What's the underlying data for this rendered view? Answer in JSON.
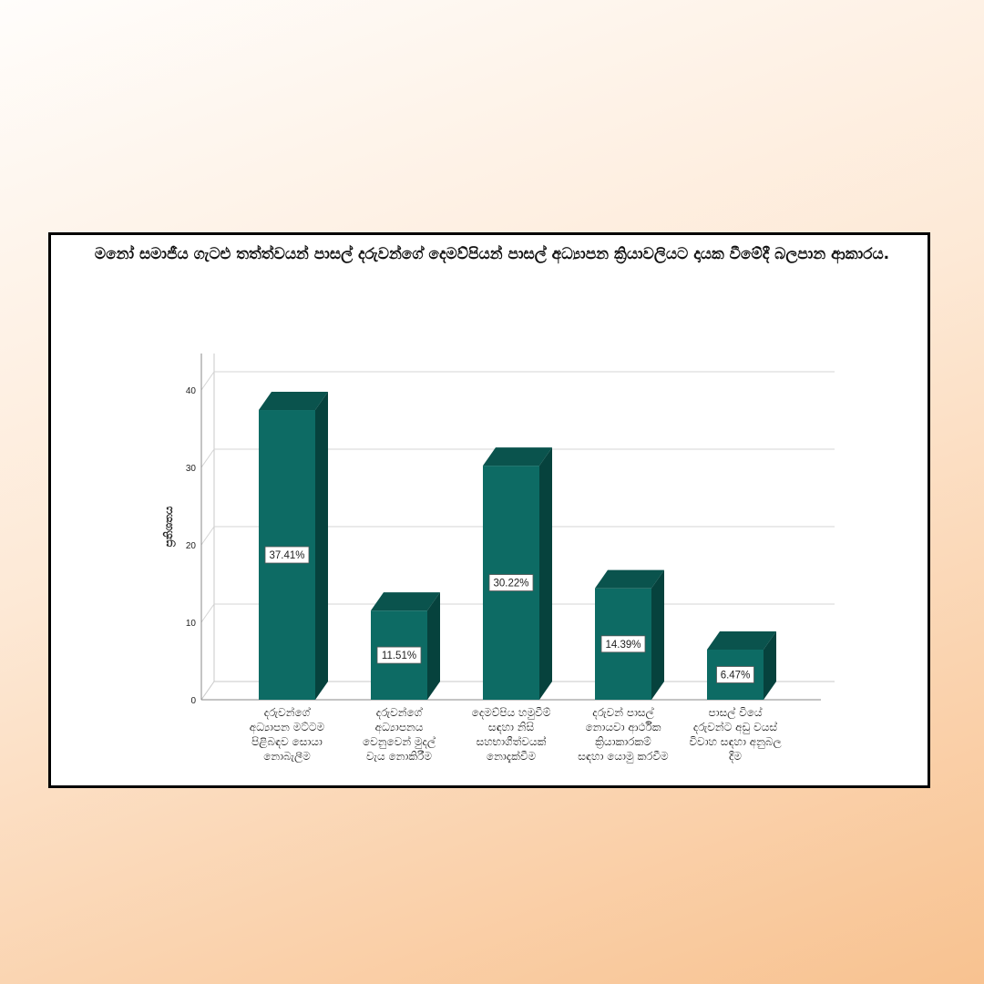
{
  "chart_data": {
    "type": "bar",
    "title": "මනෝ සමාජීය ගැටළු තත්ත්වයන් පාසල් දරුවන්ගේ දෙමව්පියන් පාසල් අධ්‍යාපන ක්‍රියාවලියට දායක වීමේදී බලපාන ආකාරය.",
    "ylabel": "ප්‍රතිශතය",
    "xlabel": "",
    "ylim": [
      0,
      40
    ],
    "yticks": [
      0,
      10,
      20,
      30,
      40
    ],
    "grid": true,
    "bar_color": "#0d6b64",
    "bar_side_color": "#06423d",
    "bar_top_color": "#0a534d",
    "categories": [
      "දරුවන්ගේ අධ්‍යාපන මට්ටම පිළිබඳව සොයා නොබැලීම",
      "දරුවන්ගේ අධ්‍යාපනය වෙනුවෙන් මුදල් වැය නොකිරීම",
      "දෙමව්පිය හමුවීම් සඳහා නිසි සහභාගීත්වයක් නොදැක්වීම",
      "දරුවන් පාසල් නොයවා ආර්ථික ක්‍රියාකාරකම් සඳහා යොමු කරවීම",
      "පාසල් වියේ දරුවන්ට අඩු වයස් විවාහ සඳහා අනුබල දීම"
    ],
    "values": [
      37.41,
      11.51,
      30.22,
      14.39,
      6.47
    ],
    "data_labels": [
      "37.41%",
      "11.51%",
      "30.22%",
      "14.39%",
      "6.47%"
    ]
  }
}
